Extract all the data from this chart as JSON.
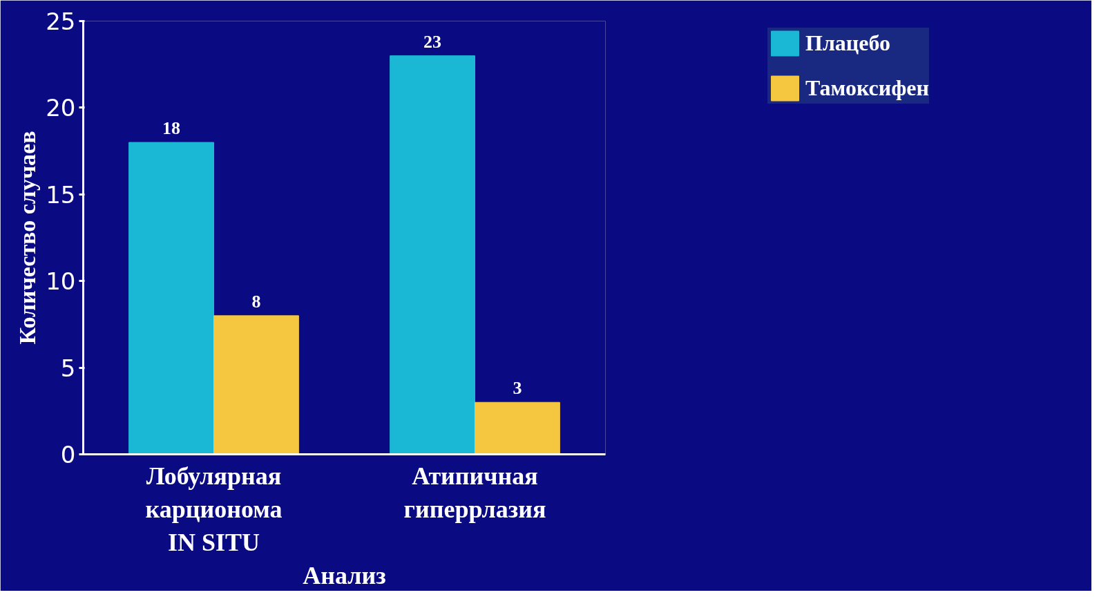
{
  "chart_data": {
    "type": "bar",
    "xlabel": "Анализ",
    "ylabel": "Количество случаев",
    "categories": [
      "Лобулярная\nкарционома\nIN SITU",
      "Атипичная\nгиперрлазия"
    ],
    "series": [
      {
        "name": "Плацебо",
        "color": "#1bb8d6",
        "values": [
          18,
          23
        ]
      },
      {
        "name": "Тамоксифен",
        "color": "#f5c640",
        "values": [
          8,
          3
        ]
      }
    ],
    "ylim": [
      0,
      25
    ],
    "yticks": [
      0,
      5,
      10,
      15,
      20,
      25
    ],
    "data_labels": true,
    "legend": "top right",
    "grid": false
  }
}
